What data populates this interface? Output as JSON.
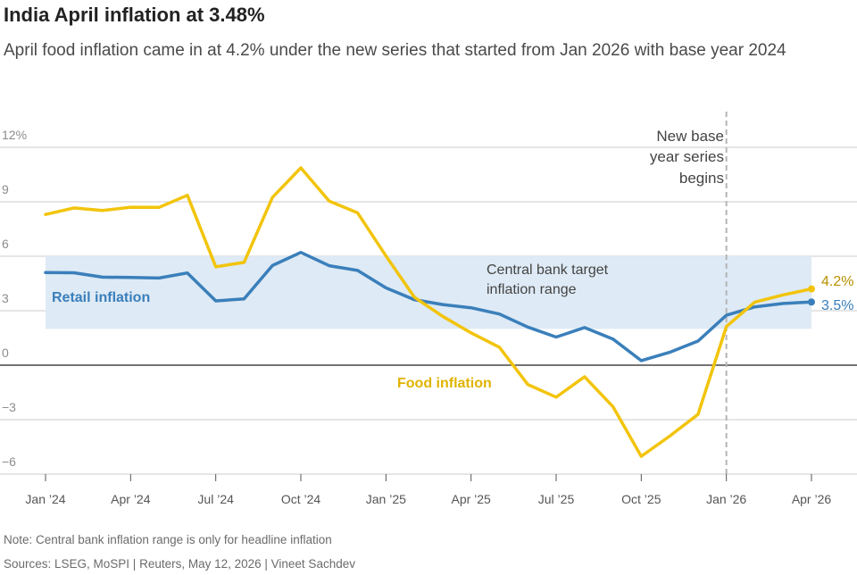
{
  "header": {
    "title": "India April inflation at 3.48%",
    "subtitle": "April food inflation came in at 4.2% under the new series that started from Jan 2026 with base year 2024"
  },
  "footer": {
    "note": "Note: Central bank inflation range is only for headline inflation",
    "sources": "Sources: LSEG, MoSPI | Reuters, May 12, 2026 | Vineet Sachdev"
  },
  "colors": {
    "retail": "#3a7fbb",
    "food": "#f2c40c",
    "band": "#deeaf5",
    "food_label": "#e0b400",
    "food_end_label": "#b88f00",
    "grid": "#cccccc",
    "zero": "#222222"
  },
  "chart_data": {
    "type": "line",
    "x": [
      "2024-01",
      "2024-02",
      "2024-03",
      "2024-04",
      "2024-05",
      "2024-06",
      "2024-07",
      "2024-08",
      "2024-09",
      "2024-10",
      "2024-11",
      "2024-12",
      "2025-01",
      "2025-02",
      "2025-03",
      "2025-04",
      "2025-05",
      "2025-06",
      "2025-07",
      "2025-08",
      "2025-09",
      "2025-10",
      "2025-11",
      "2025-12",
      "2026-01",
      "2026-02",
      "2026-03",
      "2026-04"
    ],
    "x_tick_labels": [
      "Jan ’24",
      "Apr ’24",
      "Jul ’24",
      "Oct ’24",
      "Jan ’25",
      "Apr ’25",
      "Jul ’25",
      "Oct ’25",
      "Jan ’26",
      "Apr ’26"
    ],
    "y_ticks": [
      12,
      9,
      6,
      3,
      0,
      -3,
      -6
    ],
    "y_tick_labels": [
      "12%",
      "9",
      "6",
      "3",
      "0",
      "−3",
      "−6"
    ],
    "ylim": [
      -6,
      12
    ],
    "series": [
      {
        "name": "Retail inflation",
        "values": [
          5.1,
          5.09,
          4.85,
          4.83,
          4.8,
          5.08,
          3.54,
          3.65,
          5.49,
          6.21,
          5.48,
          5.22,
          4.26,
          3.61,
          3.34,
          3.16,
          2.82,
          2.1,
          1.55,
          2.07,
          1.44,
          0.25,
          0.71,
          1.33,
          2.75,
          3.21,
          3.4,
          3.48
        ],
        "end_label": "3.5%"
      },
      {
        "name": "Food inflation",
        "values": [
          8.3,
          8.66,
          8.52,
          8.7,
          8.69,
          9.36,
          5.42,
          5.66,
          9.24,
          10.87,
          9.04,
          8.39,
          6.02,
          3.75,
          2.69,
          1.78,
          0.99,
          -1.06,
          -1.76,
          -0.64,
          -2.28,
          -5.02,
          -3.91,
          -2.71,
          2.13,
          3.47,
          3.87,
          4.2
        ],
        "end_label": "4.2%"
      }
    ],
    "band": {
      "low": 2,
      "high": 6,
      "label_line1": "Central bank target",
      "label_line2": "inflation range"
    },
    "annotation": {
      "x": "2026-01",
      "label_line1": "New base",
      "label_line2": "year series",
      "label_line3": "begins"
    },
    "grid": true
  }
}
